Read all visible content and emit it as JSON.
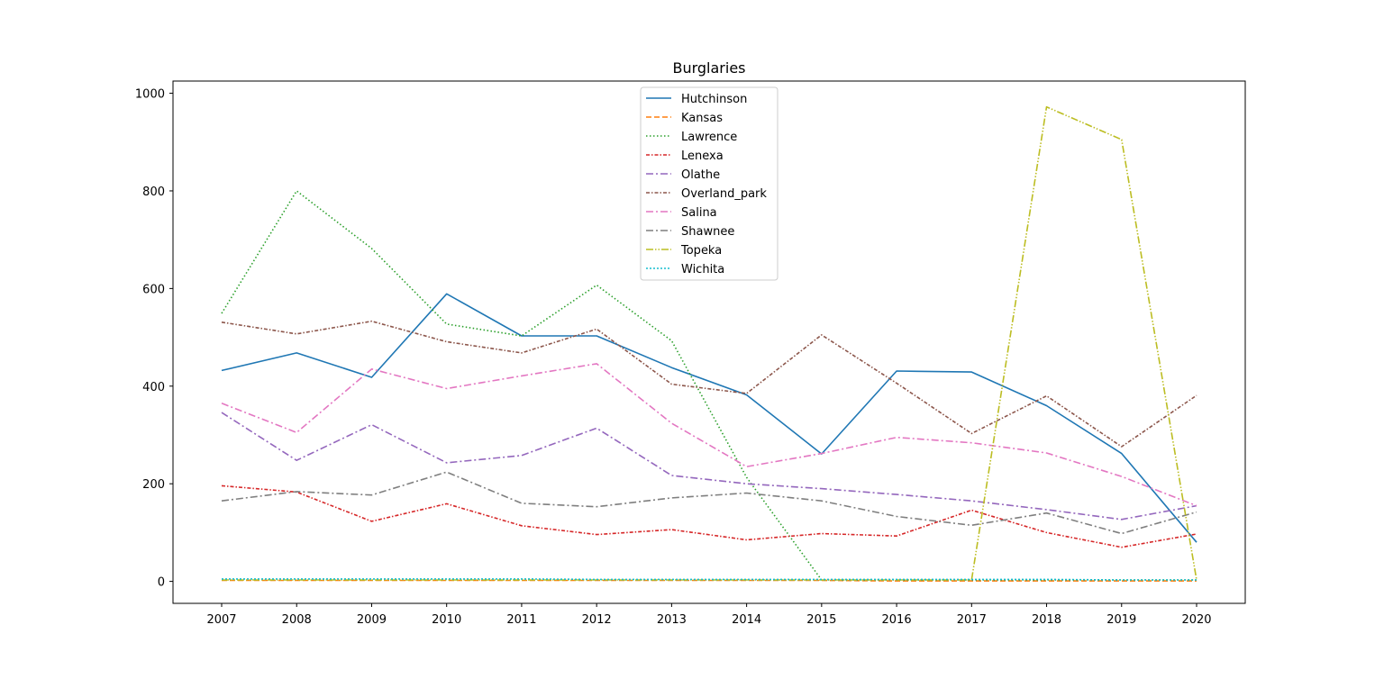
{
  "chart_data": {
    "type": "line",
    "title": "Burglaries",
    "xlabel": "",
    "ylabel": "",
    "x": [
      "2007",
      "2008",
      "2009",
      "2010",
      "2011",
      "2012",
      "2013",
      "2014",
      "2015",
      "2016",
      "2017",
      "2018",
      "2019",
      "2020"
    ],
    "ylim": [
      -45,
      1025
    ],
    "yticks": [
      0,
      200,
      400,
      600,
      800,
      1000
    ],
    "grid": false,
    "legend_position": "top-center",
    "series": [
      {
        "name": "Hutchinson",
        "color": "#1f77b4",
        "dash": "solid",
        "values": [
          432,
          468,
          418,
          589,
          503,
          503,
          438,
          382,
          261,
          431,
          429,
          360,
          262,
          80
        ]
      },
      {
        "name": "Kansas",
        "color": "#ff7f0e",
        "dash": "dashed",
        "values": [
          2,
          2,
          2,
          2,
          2,
          2,
          2,
          2,
          2,
          1,
          1,
          1,
          1,
          1
        ]
      },
      {
        "name": "Lawrence",
        "color": "#2ca02c",
        "dash": "dotted",
        "values": [
          549,
          800,
          682,
          527,
          503,
          607,
          493,
          213,
          3,
          3,
          3,
          3,
          3,
          3
        ]
      },
      {
        "name": "Lenexa",
        "color": "#d62728",
        "dash": "dashdot-fine",
        "values": [
          196,
          183,
          123,
          159,
          114,
          96,
          106,
          85,
          98,
          93,
          146,
          100,
          70,
          97
        ]
      },
      {
        "name": "Olathe",
        "color": "#9467bd",
        "dash": "dashdot",
        "values": [
          346,
          248,
          321,
          243,
          258,
          314,
          217,
          200,
          190,
          178,
          165,
          147,
          127,
          155
        ]
      },
      {
        "name": "Overland_park",
        "color": "#8c564b",
        "dash": "dashdot-fine",
        "values": [
          531,
          507,
          533,
          491,
          468,
          517,
          404,
          385,
          505,
          406,
          303,
          380,
          276,
          381
        ]
      },
      {
        "name": "Salina",
        "color": "#e377c2",
        "dash": "dashdot",
        "values": [
          365,
          305,
          435,
          395,
          421,
          446,
          324,
          235,
          262,
          295,
          284,
          263,
          215,
          155
        ]
      },
      {
        "name": "Shawnee",
        "color": "#7f7f7f",
        "dash": "dashdot",
        "values": [
          165,
          184,
          177,
          224,
          160,
          153,
          171,
          181,
          165,
          133,
          115,
          140,
          98,
          142
        ]
      },
      {
        "name": "Topeka",
        "color": "#bcbd22",
        "dash": "dashdot-double",
        "values": [
          3,
          3,
          3,
          3,
          3,
          3,
          3,
          3,
          3,
          3,
          3,
          972,
          905,
          3
        ]
      },
      {
        "name": "Wichita",
        "color": "#17becf",
        "dash": "dotted-fine",
        "values": [
          5,
          5,
          5,
          5,
          5,
          4,
          4,
          4,
          4,
          4,
          4,
          4,
          3,
          3
        ]
      }
    ]
  }
}
